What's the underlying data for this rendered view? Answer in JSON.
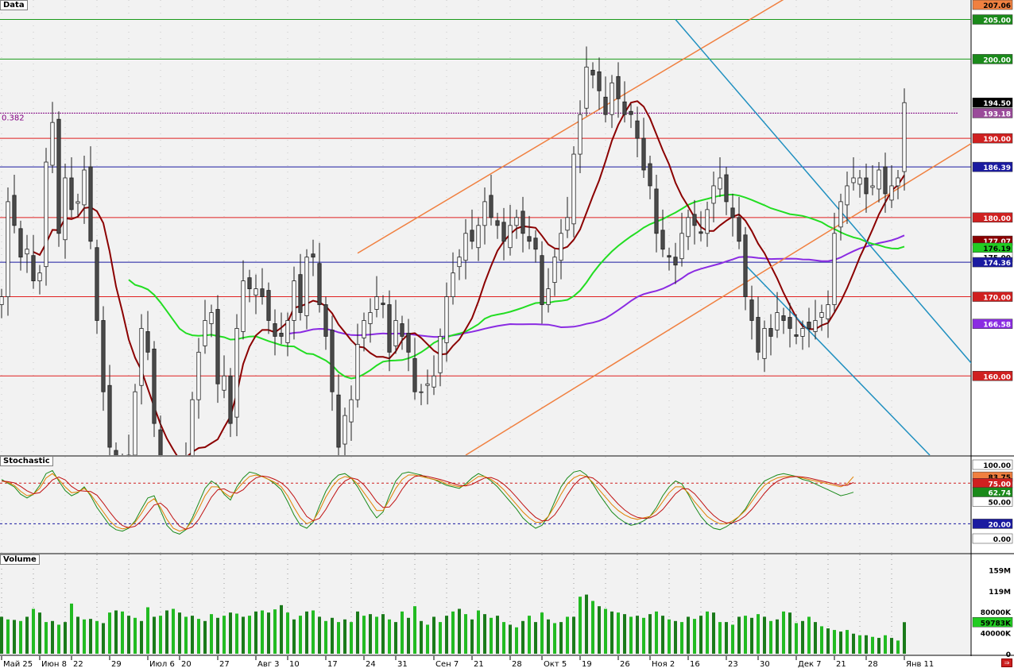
{
  "panels": {
    "price_title": "Data",
    "stoch_title": "Stochastic",
    "volume_title": "Volume"
  },
  "colors": {
    "background": "#f2f2f2",
    "up_candle": "#ffffff",
    "down_candle": "#4a4a4a",
    "red_level": "#e02020",
    "green_level": "#1a9a1a",
    "blue_level": "#1a1aa0",
    "channel_orange": "#f08040",
    "channel_blue": "#2090c0",
    "ma_dark_red": "#8b0000",
    "ma_green": "#22dd22",
    "ma_purple": "#8a2be2",
    "volume_bar": "#22bb22"
  },
  "chart_data": [
    {
      "type": "candlestick",
      "panel": "Data",
      "ylim": [
        150,
        207.06
      ],
      "y_ticks": [
        "207.06",
        "205.00",
        "200.00",
        "194.50",
        "193.18",
        "190.00",
        "186.39",
        "180.00",
        "177.07",
        "176.19",
        "175.00",
        "174.36",
        "170.00",
        "166.58",
        "160.00"
      ],
      "x_tick_labels": [
        "Май 25",
        "Июн 8",
        "22",
        "29",
        "Июл 6",
        "20",
        "27",
        "Авг 3",
        "10",
        "17",
        "24",
        "31",
        "Сен 7",
        "21",
        "28",
        "Окт 5",
        "19",
        "26",
        "Ноя 2",
        "16",
        "23",
        "30",
        "Дек 7",
        "21",
        "28",
        "Янв 11"
      ],
      "fib_label": "0.382",
      "fib_value": 193.18,
      "last_close": 194.5,
      "horizontal_levels": [
        {
          "value": 205,
          "color": "green"
        },
        {
          "value": 200,
          "color": "green"
        },
        {
          "value": 190,
          "color": "red"
        },
        {
          "value": 186.39,
          "color": "blue"
        },
        {
          "value": 180,
          "color": "red"
        },
        {
          "value": 174.36,
          "color": "blue"
        },
        {
          "value": 170,
          "color": "red"
        },
        {
          "value": 160,
          "color": "red"
        }
      ],
      "ma_last_values": {
        "dark_red": 177.07,
        "green": 176.19,
        "purple": 166.58
      },
      "closes": [
        170,
        182,
        179,
        175,
        176,
        172,
        173,
        187,
        192,
        178,
        185,
        181,
        182,
        186,
        177,
        167,
        158,
        151,
        148,
        146,
        150,
        158,
        166,
        163,
        154,
        145,
        140,
        137,
        135,
        149,
        157,
        163,
        167,
        168,
        159,
        160,
        154,
        166,
        172,
        171,
        171,
        170,
        167,
        165,
        165,
        167,
        172,
        168,
        175,
        175,
        169,
        165,
        158,
        151,
        155,
        157,
        164,
        167,
        168,
        170,
        169,
        163,
        167,
        165,
        163,
        158,
        158,
        159,
        160,
        165,
        170,
        173,
        175,
        178,
        177,
        179,
        182,
        180,
        179,
        177,
        179,
        180,
        178,
        177,
        176,
        169,
        171,
        175,
        178,
        180,
        188,
        193,
        199,
        198,
        196,
        193,
        197,
        195,
        193,
        193,
        190,
        186,
        184,
        178,
        176,
        175,
        174,
        178,
        180,
        179,
        178,
        181,
        184,
        185,
        182,
        180,
        177,
        170,
        167,
        163,
        166,
        165,
        168,
        167,
        166,
        165,
        166,
        166,
        167,
        168,
        169,
        178,
        182,
        184,
        185,
        185,
        183,
        184,
        186,
        183,
        184,
        185,
        194.5
      ],
      "volume_ylim": [
        0,
        170000000
      ],
      "volume_tick_labels": [
        "159M",
        "119M",
        "80000K",
        "40000K",
        "0"
      ],
      "volume_last_label": "59783K",
      "volume_last": 59783000,
      "volumes_millions": [
        70,
        65,
        64,
        62,
        70,
        85,
        78,
        60,
        62,
        55,
        60,
        95,
        70,
        65,
        66,
        62,
        58,
        78,
        82,
        80,
        72,
        68,
        62,
        88,
        70,
        72,
        82,
        85,
        78,
        70,
        72,
        66,
        62,
        75,
        68,
        72,
        78,
        76,
        70,
        72,
        80,
        82,
        78,
        84,
        92,
        78,
        65,
        72,
        80,
        82,
        70,
        62,
        68,
        60,
        65,
        60,
        80,
        72,
        75,
        70,
        75,
        65,
        60,
        80,
        68,
        90,
        62,
        55,
        70,
        60,
        72,
        80,
        85,
        75,
        65,
        82,
        75,
        68,
        72,
        60,
        55,
        50,
        62,
        72,
        60,
        78,
        65,
        58,
        60,
        70,
        70,
        108,
        112,
        100,
        90,
        85,
        80,
        78,
        75,
        70,
        72,
        68,
        75,
        80,
        72,
        65,
        62,
        60,
        70,
        66,
        72,
        80,
        78,
        60,
        60,
        55,
        70,
        72,
        68,
        75,
        70,
        62,
        65,
        80,
        78,
        58,
        62,
        70,
        60,
        52,
        48,
        45,
        42,
        45,
        38,
        35,
        35,
        32,
        30,
        35,
        30,
        25,
        59.783
      ]
    },
    {
      "type": "line",
      "panel": "Stochastic",
      "ylim": [
        0,
        100
      ],
      "y_ticks": [
        "100.00",
        "83.75",
        "75.00",
        "62.74",
        "50.00",
        "20.00",
        "0.00"
      ],
      "levels": [
        75,
        20
      ],
      "series": [
        {
          "label": "fast",
          "last": 62.74,
          "values": [
            80,
            75,
            70,
            60,
            55,
            60,
            72,
            88,
            92,
            78,
            65,
            58,
            62,
            70,
            58,
            42,
            30,
            18,
            12,
            10,
            14,
            24,
            40,
            55,
            58,
            38,
            18,
            9,
            6,
            12,
            28,
            48,
            68,
            78,
            72,
            60,
            52,
            70,
            82,
            90,
            88,
            84,
            80,
            74,
            66,
            50,
            32,
            18,
            14,
            22,
            44,
            64,
            78,
            86,
            88,
            82,
            70,
            55,
            40,
            28,
            36,
            58,
            78,
            88,
            90,
            88,
            86,
            82,
            80,
            76,
            72,
            70,
            68,
            74,
            82,
            88,
            84,
            78,
            70,
            60,
            50,
            40,
            28,
            20,
            14,
            18,
            30,
            50,
            70,
            82,
            90,
            92,
            86,
            74,
            60,
            48,
            36,
            28,
            22,
            18,
            20,
            24,
            30,
            42,
            58,
            70,
            78,
            74,
            60,
            44,
            30,
            20,
            14,
            12,
            16,
            22,
            30,
            40,
            55,
            68,
            78,
            82,
            86,
            88,
            86,
            84,
            80,
            78,
            74,
            70,
            66,
            62,
            58,
            60,
            62.74
          ]
        },
        {
          "label": "slow",
          "last": 83.75,
          "values": [
            78,
            76,
            72,
            64,
            58,
            60,
            68,
            82,
            88,
            80,
            70,
            62,
            63,
            68,
            60,
            48,
            36,
            24,
            16,
            13,
            15,
            22,
            34,
            48,
            54,
            42,
            26,
            14,
            10,
            13,
            24,
            40,
            58,
            70,
            70,
            62,
            56,
            66,
            76,
            84,
            86,
            84,
            80,
            76,
            70,
            58,
            42,
            28,
            20,
            24,
            38,
            56,
            70,
            80,
            84,
            82,
            74,
            62,
            50,
            38,
            38,
            52,
            68,
            80,
            86,
            86,
            84,
            82,
            80,
            78,
            74,
            72,
            70,
            72,
            78,
            84,
            84,
            80,
            74,
            66,
            56,
            46,
            36,
            28,
            22,
            22,
            30,
            44,
            60,
            74,
            82,
            86,
            84,
            76,
            66,
            56,
            46,
            38,
            32,
            28,
            26,
            28,
            30,
            38,
            50,
            62,
            70,
            70,
            62,
            50,
            40,
            30,
            24,
            20,
            20,
            24,
            30,
            38,
            50,
            62,
            72,
            78,
            82,
            84,
            84,
            84,
            82,
            80,
            78,
            76,
            74,
            72,
            70,
            74,
            83.75
          ]
        }
      ]
    }
  ]
}
